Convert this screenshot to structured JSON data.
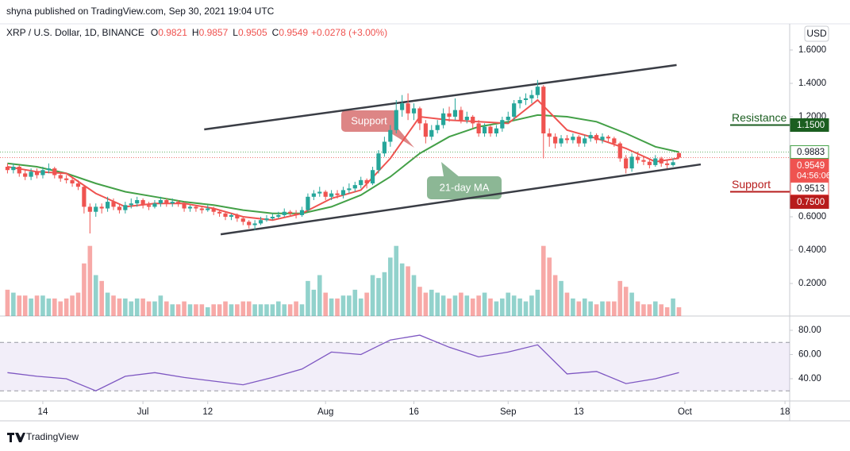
{
  "header": {
    "published": "shyna published on TradingView.com, Sep 30, 2021 19:04 UTC",
    "symbol": "XRP / U.S. Dollar, 1D, BINANCE",
    "ohlc": [
      {
        "label": "O",
        "value": 0.9821
      },
      {
        "label": "H",
        "value": 0.9857
      },
      {
        "label": "L",
        "value": 0.9505
      },
      {
        "label": "C",
        "value": 0.9549
      }
    ],
    "change": "+0.0278 (+3.00%)",
    "currency": "USD"
  },
  "footer": {
    "brand": "TradingView"
  },
  "chart_data": {
    "type": "candlestick",
    "up_color": "#26a69a",
    "down_color": "#ef5350",
    "x": [
      1,
      2,
      3,
      4,
      5,
      6,
      7,
      8,
      9,
      10,
      11,
      12,
      13,
      14,
      15,
      16,
      17,
      18,
      19,
      20,
      21,
      22,
      23,
      24,
      25,
      26,
      27,
      28,
      29,
      30,
      31,
      32,
      33,
      34,
      35,
      36,
      37,
      38,
      39,
      40,
      41,
      42,
      43,
      44,
      45,
      46,
      47,
      48,
      49,
      50,
      51,
      52,
      53,
      54,
      55,
      56,
      57,
      58,
      59,
      60,
      61,
      62,
      63,
      64,
      65,
      66,
      67,
      68,
      69,
      70,
      71,
      72,
      73,
      74,
      75,
      76,
      77,
      78,
      79,
      80,
      81,
      82,
      83,
      84,
      85,
      86,
      87,
      88,
      89,
      90,
      91,
      92,
      93,
      94,
      95,
      96,
      97,
      98,
      99,
      100,
      101,
      102,
      103,
      104,
      105,
      106,
      107,
      108,
      109,
      110,
      111,
      112,
      113,
      114,
      115
    ],
    "open": [
      0.9,
      0.88,
      0.9,
      0.86,
      0.84,
      0.87,
      0.85,
      0.88,
      0.89,
      0.85,
      0.83,
      0.82,
      0.8,
      0.78,
      0.66,
      0.63,
      0.66,
      0.65,
      0.69,
      0.66,
      0.64,
      0.67,
      0.68,
      0.7,
      0.67,
      0.66,
      0.68,
      0.7,
      0.68,
      0.69,
      0.68,
      0.65,
      0.66,
      0.65,
      0.64,
      0.65,
      0.63,
      0.62,
      0.6,
      0.61,
      0.59,
      0.57,
      0.55,
      0.56,
      0.58,
      0.59,
      0.6,
      0.61,
      0.63,
      0.62,
      0.61,
      0.64,
      0.72,
      0.74,
      0.75,
      0.72,
      0.74,
      0.73,
      0.76,
      0.77,
      0.79,
      0.82,
      0.8,
      0.88,
      0.98,
      1.05,
      1.12,
      1.24,
      1.28,
      1.22,
      1.25,
      1.16,
      1.08,
      1.12,
      1.15,
      1.22,
      1.2,
      1.24,
      1.18,
      1.2,
      1.16,
      1.1,
      1.14,
      1.1,
      1.13,
      1.18,
      1.2,
      1.28,
      1.3,
      1.31,
      1.33,
      1.38,
      1.1,
      1.08,
      1.04,
      1.07,
      1.06,
      1.08,
      1.04,
      1.07,
      1.09,
      1.06,
      1.08,
      1.07,
      1.04,
      0.95,
      0.89,
      0.96,
      0.94,
      0.93,
      0.91,
      0.95,
      0.92,
      0.91,
      0.9821
    ],
    "high": [
      0.92,
      0.92,
      0.91,
      0.88,
      0.89,
      0.89,
      0.9,
      0.92,
      0.9,
      0.87,
      0.85,
      0.84,
      0.82,
      0.79,
      0.68,
      0.68,
      0.68,
      0.72,
      0.71,
      0.68,
      0.69,
      0.71,
      0.72,
      0.71,
      0.69,
      0.7,
      0.72,
      0.71,
      0.71,
      0.7,
      0.69,
      0.67,
      0.67,
      0.66,
      0.67,
      0.66,
      0.64,
      0.63,
      0.62,
      0.62,
      0.6,
      0.58,
      0.58,
      0.6,
      0.61,
      0.62,
      0.63,
      0.65,
      0.64,
      0.64,
      0.66,
      0.74,
      0.76,
      0.78,
      0.76,
      0.76,
      0.76,
      0.78,
      0.8,
      0.81,
      0.84,
      0.83,
      0.9,
      1.0,
      1.08,
      1.15,
      1.3,
      1.33,
      1.34,
      1.28,
      1.26,
      1.18,
      1.15,
      1.18,
      1.25,
      1.26,
      1.31,
      1.26,
      1.23,
      1.21,
      1.18,
      1.16,
      1.15,
      1.15,
      1.2,
      1.23,
      1.3,
      1.32,
      1.34,
      1.36,
      1.42,
      1.39,
      1.13,
      1.1,
      1.09,
      1.09,
      1.1,
      1.09,
      1.09,
      1.11,
      1.1,
      1.1,
      1.09,
      1.08,
      1.05,
      0.97,
      0.98,
      0.99,
      0.96,
      0.95,
      0.97,
      0.96,
      0.94,
      0.95,
      0.9857
    ],
    "low": [
      0.86,
      0.86,
      0.84,
      0.82,
      0.82,
      0.83,
      0.83,
      0.86,
      0.83,
      0.81,
      0.8,
      0.78,
      0.76,
      0.62,
      0.5,
      0.6,
      0.62,
      0.63,
      0.64,
      0.62,
      0.62,
      0.65,
      0.66,
      0.65,
      0.64,
      0.65,
      0.66,
      0.66,
      0.66,
      0.66,
      0.63,
      0.63,
      0.63,
      0.62,
      0.63,
      0.61,
      0.6,
      0.58,
      0.58,
      0.57,
      0.55,
      0.53,
      0.52,
      0.55,
      0.57,
      0.58,
      0.59,
      0.6,
      0.6,
      0.59,
      0.6,
      0.63,
      0.7,
      0.72,
      0.7,
      0.7,
      0.71,
      0.71,
      0.74,
      0.75,
      0.77,
      0.77,
      0.79,
      0.86,
      0.96,
      1.02,
      1.1,
      1.2,
      1.18,
      1.18,
      1.12,
      1.04,
      1.06,
      1.1,
      1.13,
      1.17,
      1.18,
      1.16,
      1.16,
      1.13,
      1.08,
      1.08,
      1.08,
      1.08,
      1.11,
      1.16,
      1.18,
      1.25,
      1.27,
      1.28,
      1.31,
      0.95,
      1.02,
      1.01,
      1.02,
      1.04,
      1.04,
      1.02,
      1.02,
      1.05,
      1.04,
      1.04,
      1.05,
      1.02,
      0.93,
      0.86,
      0.87,
      0.92,
      0.91,
      0.89,
      0.9,
      0.9,
      0.89,
      0.9,
      0.9505
    ],
    "close": [
      0.88,
      0.9,
      0.86,
      0.84,
      0.87,
      0.85,
      0.88,
      0.89,
      0.85,
      0.83,
      0.82,
      0.8,
      0.78,
      0.66,
      0.63,
      0.66,
      0.65,
      0.69,
      0.66,
      0.64,
      0.67,
      0.68,
      0.7,
      0.67,
      0.66,
      0.68,
      0.7,
      0.68,
      0.69,
      0.68,
      0.65,
      0.66,
      0.65,
      0.64,
      0.65,
      0.63,
      0.62,
      0.6,
      0.61,
      0.59,
      0.57,
      0.55,
      0.56,
      0.58,
      0.59,
      0.6,
      0.61,
      0.63,
      0.62,
      0.61,
      0.64,
      0.72,
      0.74,
      0.75,
      0.72,
      0.74,
      0.73,
      0.76,
      0.77,
      0.79,
      0.82,
      0.8,
      0.88,
      0.98,
      1.05,
      1.12,
      1.24,
      1.28,
      1.22,
      1.25,
      1.16,
      1.08,
      1.12,
      1.15,
      1.22,
      1.2,
      1.24,
      1.18,
      1.2,
      1.16,
      1.1,
      1.14,
      1.1,
      1.13,
      1.18,
      1.2,
      1.28,
      1.3,
      1.31,
      1.33,
      1.38,
      1.1,
      1.08,
      1.04,
      1.07,
      1.06,
      1.08,
      1.04,
      1.07,
      1.09,
      1.06,
      1.08,
      1.07,
      1.04,
      0.95,
      0.89,
      0.96,
      0.94,
      0.93,
      0.91,
      0.95,
      0.92,
      0.91,
      0.9271,
      0.9549
    ],
    "volume": [
      9,
      8,
      7,
      7,
      6,
      7,
      7,
      6,
      6,
      5,
      6,
      7,
      8,
      18,
      24,
      14,
      12,
      8,
      7,
      6,
      6,
      5,
      6,
      6,
      5,
      5,
      7,
      5,
      4,
      4,
      5,
      4,
      4,
      4,
      3,
      4,
      4,
      5,
      4,
      4,
      5,
      5,
      4,
      4,
      4,
      4,
      5,
      4,
      4,
      5,
      4,
      12,
      9,
      14,
      8,
      6,
      6,
      7,
      7,
      9,
      6,
      8,
      14,
      13,
      15,
      20,
      24,
      18,
      17,
      14,
      10,
      8,
      9,
      8,
      7,
      6,
      7,
      8,
      7,
      6,
      7,
      8,
      6,
      5,
      6,
      8,
      7,
      6,
      5,
      7,
      9,
      24,
      20,
      14,
      12,
      8,
      6,
      5,
      6,
      5,
      4,
      5,
      5,
      5,
      12,
      10,
      8,
      5,
      4,
      4,
      5,
      4,
      3,
      6,
      3
    ],
    "y2lim": [
      0,
      100
    ],
    "xlim": [
      -0.27,
      133.8
    ],
    "xticks": [
      {
        "value": 7,
        "label": "14"
      },
      {
        "value": 24,
        "label": "Jul"
      },
      {
        "value": 35,
        "label": "12"
      },
      {
        "value": 55,
        "label": "Aug"
      },
      {
        "value": 70,
        "label": "16"
      },
      {
        "value": 86,
        "label": "Sep"
      },
      {
        "value": 98,
        "label": "13"
      },
      {
        "value": 116,
        "label": "Oct"
      },
      {
        "value": 133,
        "label": "18"
      }
    ],
    "ylim": [
      0.005,
      1.757
    ],
    "yticks": [
      {
        "value": 0.2,
        "label": "0.2000"
      },
      {
        "value": 0.4,
        "label": "0.4000"
      },
      {
        "value": 0.6,
        "label": "0.6000"
      },
      {
        "value": 1.2,
        "label": "1.2000"
      },
      {
        "value": 1.4,
        "label": "1.4000"
      },
      {
        "value": 1.6,
        "label": "1.6000"
      }
    ],
    "lines": [
      {
        "color": "#43a047",
        "x": [
          1,
          6,
          11,
          16,
          21,
          26,
          31,
          36,
          41,
          46,
          51,
          56,
          61,
          66,
          71,
          76,
          81,
          86,
          91,
          96,
          101,
          106,
          111,
          115
        ],
        "values": [
          0.92,
          0.9,
          0.86,
          0.8,
          0.75,
          0.72,
          0.69,
          0.67,
          0.64,
          0.62,
          0.62,
          0.66,
          0.73,
          0.84,
          0.98,
          1.08,
          1.14,
          1.17,
          1.21,
          1.2,
          1.17,
          1.1,
          1.02,
          0.9883
        ]
      },
      {
        "color": "#ef5350",
        "x": [
          1,
          6,
          11,
          16,
          21,
          26,
          31,
          36,
          41,
          46,
          51,
          56,
          61,
          66,
          71,
          76,
          81,
          86,
          91,
          96,
          101,
          106,
          111,
          115
        ],
        "values": [
          0.9,
          0.87,
          0.86,
          0.74,
          0.66,
          0.68,
          0.68,
          0.65,
          0.6,
          0.58,
          0.62,
          0.71,
          0.76,
          0.95,
          1.2,
          1.18,
          1.17,
          1.16,
          1.3,
          1.12,
          1.07,
          1.01,
          0.93,
          0.9513
        ]
      }
    ],
    "trendlines": [
      {
        "x": [
          34.4,
          114.6
        ],
        "values": [
          1.124,
          1.51
        ]
      },
      {
        "x": [
          37.2,
          118.7
        ],
        "values": [
          0.495,
          0.914
        ]
      }
    ],
    "levels": [
      {
        "name": "Resistance",
        "value": 1.15,
        "label": "1.1500",
        "color": "#1b5e20"
      },
      {
        "name": "Support",
        "value": 0.75,
        "label": "0.7500",
        "color": "#b71c1c"
      }
    ],
    "price_labels": [
      {
        "value": 0.9883,
        "label": "0.9883",
        "color": "#43a047"
      },
      {
        "value": 0.9549,
        "label": "0.9549",
        "countdown": "04:56:06",
        "color": "#ef5350"
      },
      {
        "value": 0.9513,
        "label": "0.9513",
        "color": "#ef5350"
      }
    ],
    "annotations": [
      {
        "text": "Support"
      },
      {
        "text": "21-day MA"
      }
    ],
    "rsi": {
      "color": "#7e57c2",
      "band": [
        30,
        70
      ],
      "ylim": [
        21.6,
        91.8
      ],
      "yticks": [
        {
          "value": 40,
          "label": "40.00"
        },
        {
          "value": 60,
          "label": "60.00"
        },
        {
          "value": 80,
          "label": "80.00"
        }
      ],
      "x": [
        1,
        6,
        11,
        16,
        21,
        26,
        31,
        36,
        41,
        46,
        51,
        56,
        61,
        66,
        71,
        76,
        81,
        86,
        91,
        96,
        101,
        106,
        111,
        115
      ],
      "values": [
        45,
        42,
        40,
        30,
        42,
        45,
        41,
        38,
        35,
        41,
        48,
        62,
        60,
        72,
        76,
        66,
        58,
        62,
        68,
        44,
        46,
        36,
        40,
        45
      ]
    }
  }
}
